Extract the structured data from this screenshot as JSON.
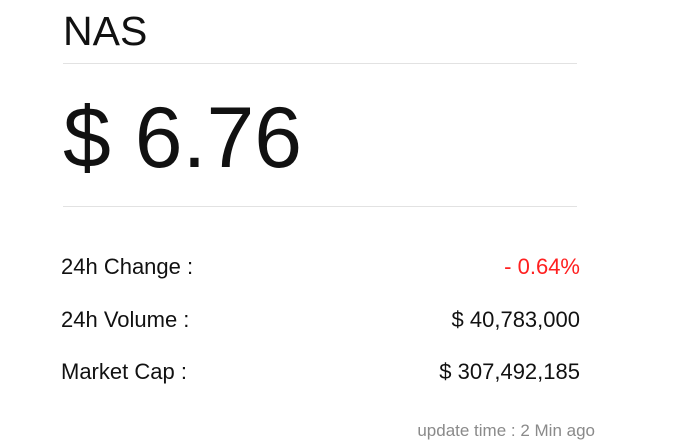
{
  "coin": {
    "symbol": "NAS",
    "price": "$ 6.76"
  },
  "stats": [
    {
      "label": "24h Change :",
      "value": "- 0.64%"
    },
    {
      "label": "24h Volume :",
      "value": "$ 40,783,000"
    },
    {
      "label": "Market Cap :",
      "value": "$ 307,492,185"
    }
  ],
  "footer": {
    "update_text": "update time : 2 Min ago"
  },
  "colors": {
    "negative": "#ff2020",
    "muted": "#8a8a8a",
    "divider": "#e2e2e2"
  }
}
